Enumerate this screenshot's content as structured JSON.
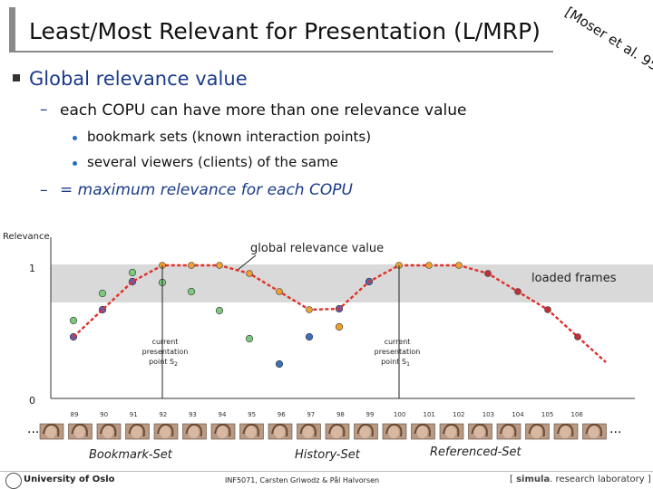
{
  "slide": {
    "title": "Least/Most Relevant for Presentation (L/MRP)",
    "citation": "[Moser et al. 95]"
  },
  "bullets": {
    "l1": "Global relevance value",
    "l2a": "each COPU can have more than one relevance value",
    "l3a": "bookmark sets (known interaction points)",
    "l3b": "several viewers (clients) of the same",
    "l2b": "= maximum relevance for each COPU"
  },
  "diagram": {
    "relevance_label": "Relevance",
    "y_one": "1",
    "y_zero": "0",
    "global_label": "global relevance value",
    "loaded_label": "loaded frames",
    "point2": {
      "l1": "current",
      "l2": "presentation",
      "l3": "point S",
      "sub": "2"
    },
    "point1": {
      "l1": "current",
      "l2": "presentation",
      "l3": "point S",
      "sub": "1"
    },
    "frame_numbers": [
      "89",
      "90",
      "91",
      "92",
      "93",
      "94",
      "95",
      "96",
      "97",
      "98",
      "99",
      "100",
      "101",
      "102",
      "103",
      "104",
      "105",
      "106"
    ],
    "ellipsis": "...",
    "bookmark_set": "Bookmark-Set",
    "history_set": "History-Set",
    "referenced_set": "Referenced-Set"
  },
  "footer": {
    "institution": "University of Oslo",
    "course": "INF5071, Carsten Griwodz & Pål Halvorsen",
    "lab_open": "[",
    "lab_simula": "simula",
    "lab_rest": ". research laboratory",
    "lab_close": "]"
  },
  "colors": {
    "title_bar": "#8a8a8a",
    "heading_blue": "#1a3a8a",
    "band": "#d9d9d9",
    "curve": "#e0302a",
    "green": "#7cc97c",
    "purple": "#6c5aa8",
    "blue": "#3d6fb8",
    "orange": "#f0a030",
    "red_dot": "#c0303a"
  }
}
